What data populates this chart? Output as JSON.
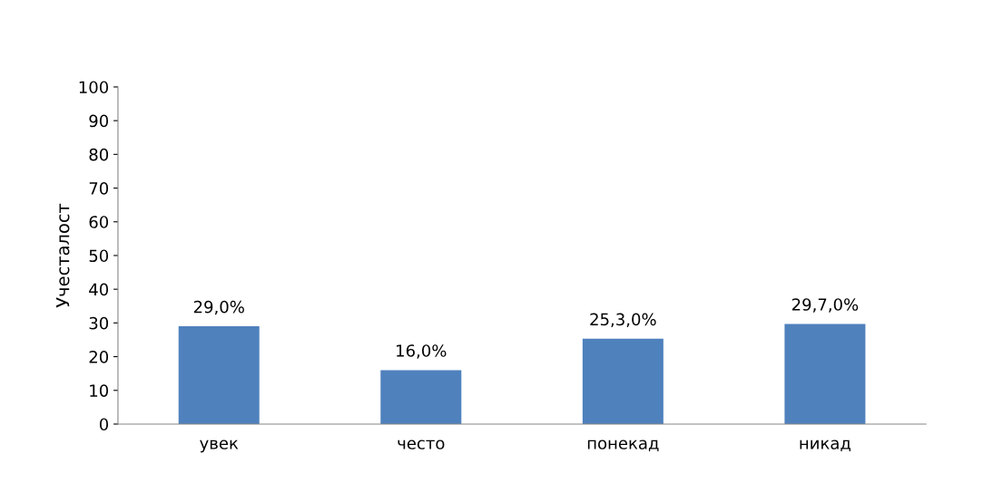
{
  "chart_data": {
    "type": "bar",
    "ylabel": "Учесталост",
    "categories": [
      "увек",
      "често",
      "понекад",
      "никад"
    ],
    "values": [
      29.0,
      16.0,
      25.3,
      29.7
    ],
    "value_labels": [
      "29,0%",
      "16,0%",
      "25,3,0%",
      "29,7,0%"
    ],
    "color": "#4f81bd",
    "ylim": [
      0,
      100
    ],
    "yticks": [
      0,
      10,
      20,
      30,
      40,
      50,
      60,
      70,
      80,
      90,
      100
    ],
    "grid": false,
    "legend": false
  }
}
